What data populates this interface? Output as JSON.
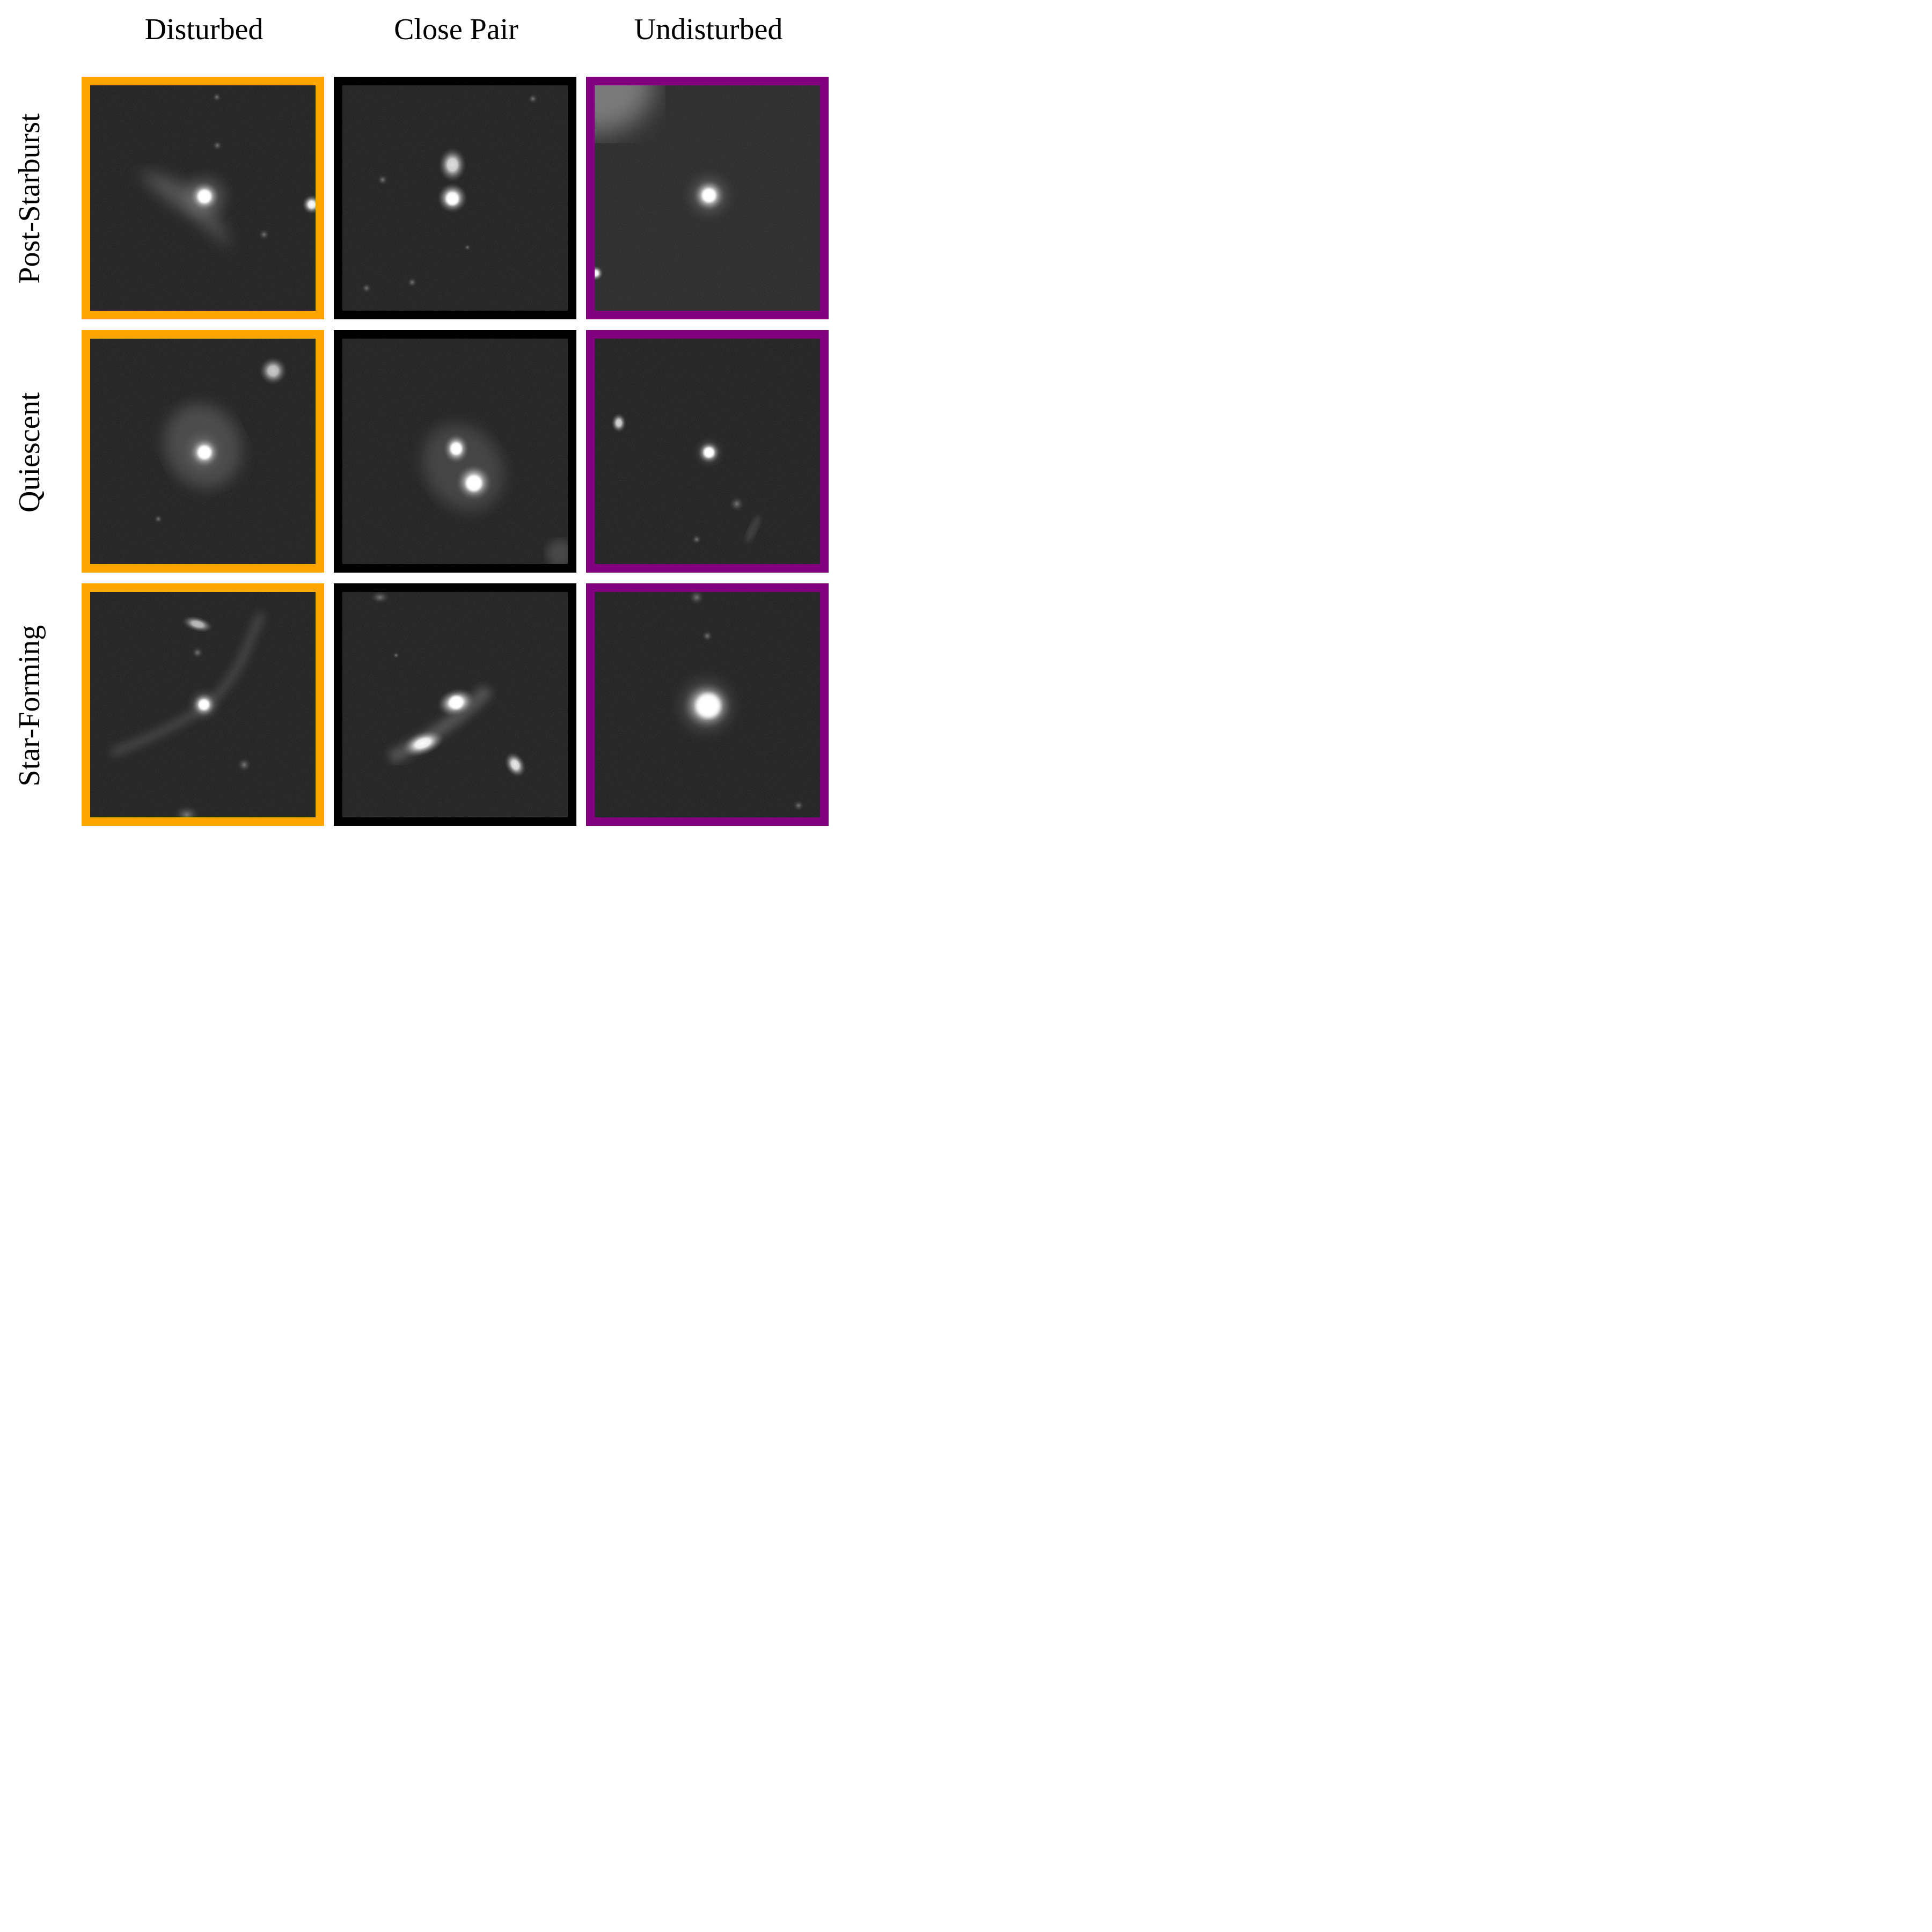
{
  "columns": [
    "Disturbed",
    "Close Pair",
    "Undisturbed"
  ],
  "rows": [
    "Post-Starburst",
    "Quiescent",
    "Star-Forming"
  ],
  "colors": {
    "disturbed_border": "#FFA500",
    "close_pair_border": "#000000",
    "undisturbed_border": "#800080",
    "sky_background": "#161616"
  }
}
